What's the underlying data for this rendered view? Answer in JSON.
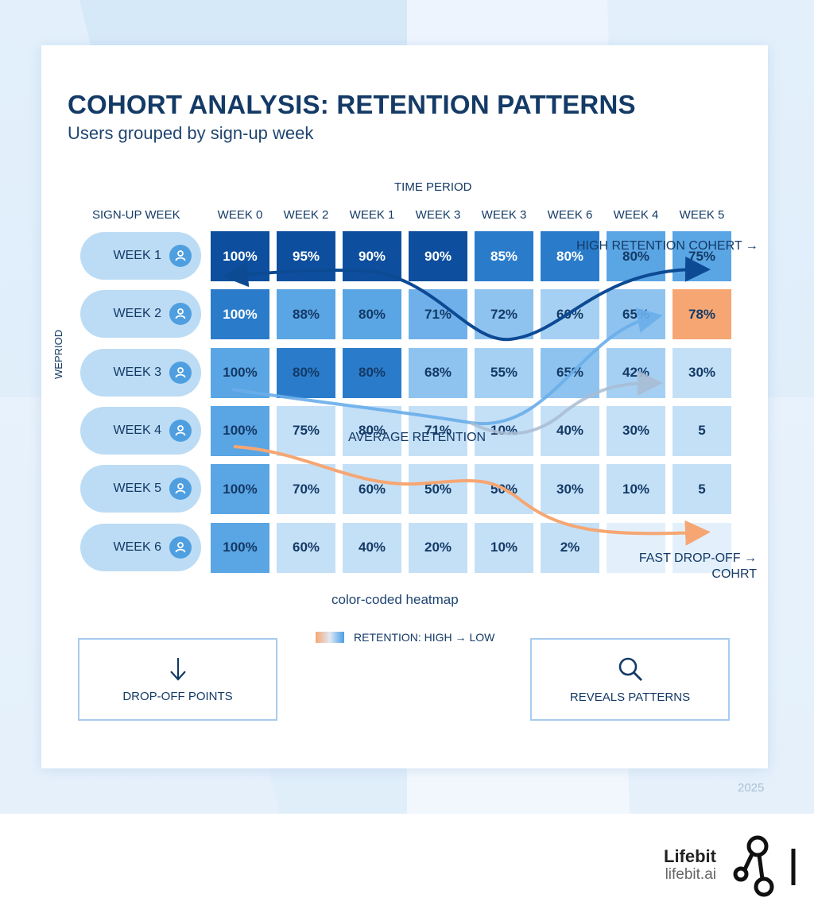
{
  "header": {
    "title": "COHORT ANALYSIS: RETENTION PATTERNS",
    "subtitle": "Users grouped by sign-up week"
  },
  "chart_data": {
    "type": "heatmap",
    "title": "COHORT ANALYSIS: RETENTION PATTERNS",
    "subtitle": "Users grouped by sign-up week",
    "xlabel": "TIME PERIOD",
    "ylabel": "WEPRIOD",
    "row_header": "SIGN-UP WEEK",
    "columns": [
      "WEEK 0",
      "WEEK 2",
      "WEEK 1",
      "WEEK 3",
      "WEEK 3",
      "WEEK 6",
      "WEEK 4",
      "WEEK 5"
    ],
    "rows": [
      "WEEK 1",
      "WEEK 2",
      "WEEK 3",
      "WEEK 4",
      "WEEK 5",
      "WEEK 6"
    ],
    "values": [
      [
        "100%",
        "95%",
        "90%",
        "90%",
        "85%",
        "80%",
        "80%",
        "75%"
      ],
      [
        "100%",
        "88%",
        "80%",
        "71%",
        "72%",
        "60%",
        "65%",
        "78%"
      ],
      [
        "100%",
        "80%",
        "80%",
        "68%",
        "55%",
        "65%",
        "42%",
        "30%"
      ],
      [
        "100%",
        "75%",
        "80%",
        "71%",
        "10%",
        "40%",
        "30%",
        "5"
      ],
      [
        "100%",
        "70%",
        "60%",
        "50%",
        "50%",
        "30%",
        "10%",
        "5"
      ],
      [
        "100%",
        "60%",
        "40%",
        "20%",
        "10%",
        "2%",
        "",
        ""
      ]
    ],
    "highlighted_cells": [
      {
        "row": "WEEK 2",
        "column": "WEEK 5",
        "color": "#f6a673"
      }
    ],
    "annotations": [
      {
        "text": "HIGH RETENTION COHERT →",
        "series_color": "#0d4a94"
      },
      {
        "text": "AVERAGE RETENTION",
        "series_color": "#6aaeea"
      },
      {
        "text": "FAST DROP-OFF → COHRT",
        "series_color": "#f6a673"
      }
    ],
    "legend": {
      "label": "RETENTION: HIGH → LOW",
      "position": "bottom-center"
    },
    "caption": "color-coded heatmap"
  },
  "features": [
    {
      "icon": "arrow-down-icon",
      "label": "DROP-OFF POINTS"
    },
    {
      "icon": "search-icon",
      "label": "REVEALS PATTERNS"
    }
  ],
  "footer": {
    "year": "2025",
    "brand_name": "Lifebit",
    "brand_url": "lifebit.ai"
  },
  "colors": {
    "dark_navy": "#143a66",
    "high": "#0d4f9e",
    "mid": "#3a8ad8",
    "low": "#c4e0f7",
    "orange": "#f6a673"
  }
}
